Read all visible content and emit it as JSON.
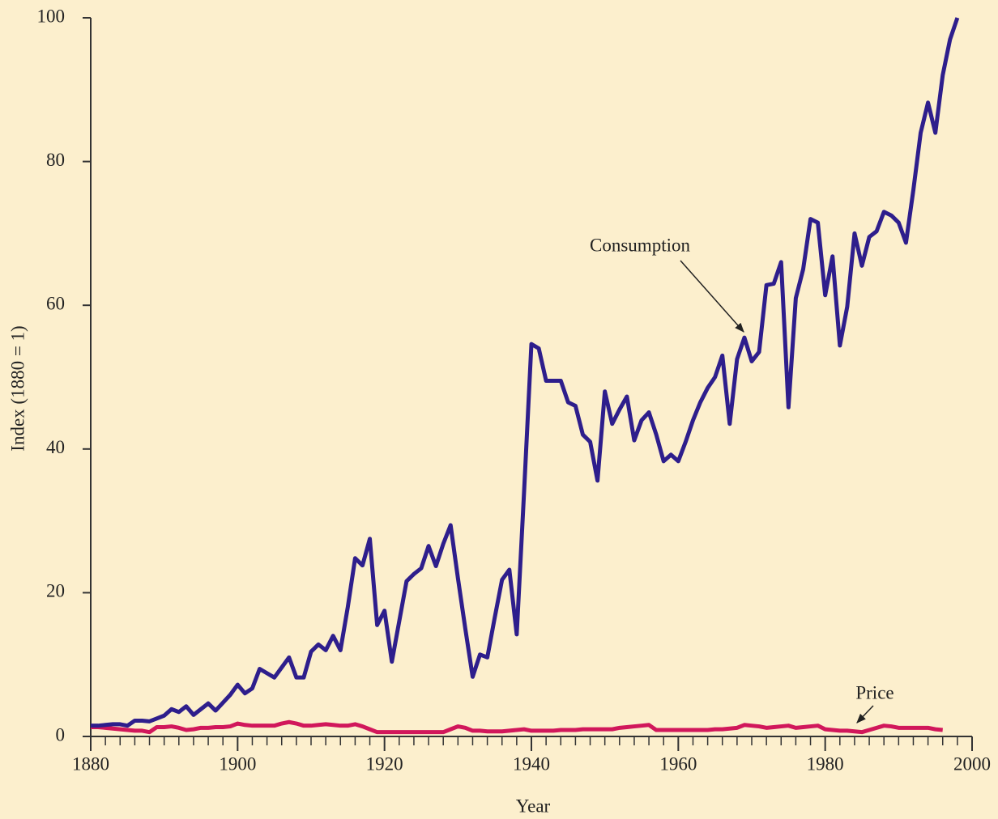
{
  "chart_data": {
    "type": "line",
    "x_label": "Year",
    "y_label": "Index (1880 = 1)",
    "annotations": [
      "Consumption",
      "Price"
    ],
    "x": [
      1880,
      1881,
      1882,
      1883,
      1884,
      1885,
      1886,
      1887,
      1888,
      1889,
      1890,
      1891,
      1892,
      1893,
      1894,
      1895,
      1896,
      1897,
      1898,
      1899,
      1900,
      1901,
      1902,
      1903,
      1904,
      1905,
      1906,
      1907,
      1908,
      1909,
      1910,
      1911,
      1912,
      1913,
      1914,
      1915,
      1916,
      1917,
      1918,
      1919,
      1920,
      1921,
      1922,
      1923,
      1924,
      1925,
      1926,
      1927,
      1928,
      1929,
      1930,
      1931,
      1932,
      1933,
      1934,
      1935,
      1936,
      1937,
      1938,
      1939,
      1940,
      1941,
      1942,
      1943,
      1944,
      1945,
      1946,
      1947,
      1948,
      1949,
      1950,
      1951,
      1952,
      1953,
      1954,
      1955,
      1956,
      1957,
      1958,
      1959,
      1960,
      1961,
      1962,
      1963,
      1964,
      1965,
      1966,
      1967,
      1968,
      1969,
      1970,
      1971,
      1972,
      1973,
      1974,
      1975,
      1976,
      1977,
      1978,
      1979,
      1980,
      1981,
      1982,
      1983,
      1984,
      1985,
      1986,
      1987,
      1988,
      1989,
      1990,
      1991,
      1992,
      1993,
      1994,
      1995,
      1996,
      1997,
      1998
    ],
    "series": [
      {
        "name": "Consumption",
        "color": "#2e1e8c",
        "values": [
          1.5,
          1.5,
          1.6,
          1.7,
          1.7,
          1.5,
          2.2,
          2.2,
          2.1,
          2.5,
          2.9,
          3.8,
          3.4,
          4.2,
          3.0,
          3.8,
          4.6,
          3.6,
          4.7,
          5.8,
          7.2,
          6.0,
          6.7,
          9.4,
          8.8,
          8.2,
          9.6,
          11.0,
          8.2,
          8.2,
          11.8,
          12.8,
          12.0,
          14.0,
          12.0,
          18.0,
          24.8,
          23.8,
          27.5,
          15.5,
          17.5,
          10.4,
          16.0,
          21.6,
          22.6,
          23.4,
          26.5,
          23.7,
          26.8,
          29.4,
          22.0,
          15.0,
          8.3,
          11.4,
          11.0,
          16.5,
          21.8,
          23.2,
          14.2,
          34.0,
          54.6,
          54.0,
          49.5,
          49.5,
          49.5,
          46.5,
          46.0,
          42.0,
          41.0,
          35.6,
          48.0,
          43.5,
          45.5,
          47.3,
          41.2,
          44.0,
          45.1,
          42.0,
          38.3,
          39.2,
          38.3,
          41.0,
          44.0,
          46.5,
          48.5,
          50.0,
          53.0,
          43.5,
          52.5,
          55.5,
          52.2,
          53.5,
          62.8,
          63.0,
          66.0,
          45.8,
          61.0,
          65.0,
          72.0,
          71.5,
          61.4,
          66.8,
          54.4,
          59.8,
          70.0,
          65.5,
          69.5,
          70.3,
          73.0,
          72.5,
          71.5,
          68.7,
          76.0,
          84.0,
          88.2,
          84.0,
          92.0,
          97.0,
          100.0
        ]
      },
      {
        "name": "Price",
        "color": "#d1175b",
        "values": [
          1.3,
          1.3,
          1.2,
          1.1,
          1.0,
          0.9,
          0.8,
          0.8,
          0.6,
          1.3,
          1.3,
          1.4,
          1.2,
          0.9,
          1.0,
          1.2,
          1.2,
          1.3,
          1.3,
          1.4,
          1.8,
          1.6,
          1.5,
          1.5,
          1.5,
          1.5,
          1.8,
          2.0,
          1.8,
          1.5,
          1.5,
          1.6,
          1.7,
          1.6,
          1.5,
          1.5,
          1.7,
          1.4,
          1.0,
          0.6,
          0.6,
          0.6,
          0.6,
          0.6,
          0.6,
          0.6,
          0.6,
          0.6,
          0.6,
          1.0,
          1.4,
          1.2,
          0.8,
          0.8,
          0.7,
          0.7,
          0.7,
          0.8,
          0.9,
          1.0,
          0.8,
          0.8,
          0.8,
          0.8,
          0.9,
          0.9,
          0.9,
          1.0,
          1.0,
          1.0,
          1.0,
          1.0,
          1.2,
          1.3,
          1.4,
          1.5,
          1.6,
          0.9,
          0.9,
          0.9,
          0.9,
          0.9,
          0.9,
          0.9,
          0.9,
          1.0,
          1.0,
          1.1,
          1.2,
          1.6,
          1.5,
          1.4,
          1.2,
          1.3,
          1.4,
          1.5,
          1.2,
          1.3,
          1.4,
          1.5,
          1.0,
          0.9,
          0.8,
          0.8,
          0.7,
          0.6,
          0.9,
          1.2,
          1.5,
          1.4,
          1.2,
          1.2,
          1.2,
          1.2,
          1.2,
          1.0,
          0.9,
          null,
          null
        ]
      }
    ],
    "xlim": [
      1880,
      2000
    ],
    "xticks": [
      1880,
      1900,
      1920,
      1940,
      1960,
      1980,
      2000
    ],
    "xminorticks": [
      1882,
      1884,
      1886,
      1888,
      1890,
      1892,
      1894,
      1896,
      1898,
      1902,
      1904,
      1906,
      1908,
      1910,
      1912,
      1914,
      1916,
      1918,
      1922,
      1924,
      1926,
      1928,
      1930,
      1932,
      1934,
      1936,
      1938,
      1942,
      1944,
      1946,
      1948,
      1950,
      1952,
      1954,
      1956,
      1958,
      1962,
      1964,
      1966,
      1968,
      1970,
      1972,
      1974,
      1976,
      1978,
      1982,
      1984,
      1986,
      1988,
      1990,
      1992,
      1994,
      1996,
      1998
    ],
    "ylim": [
      0,
      100
    ],
    "yticks": [
      0,
      20,
      40,
      60,
      80,
      100
    ],
    "grid": false
  }
}
